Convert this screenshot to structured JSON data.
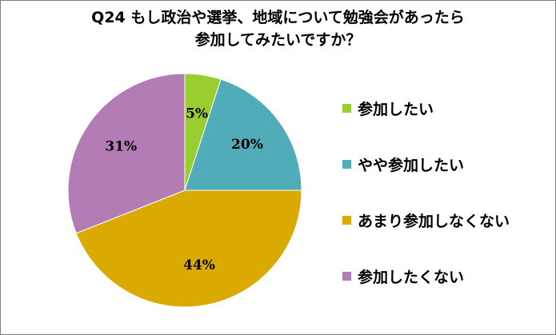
{
  "chart_data": {
    "type": "pie",
    "title_lines": [
      "Q24 もし政治や選挙、地域について勉強会があったら",
      "参加してみたいですか？"
    ],
    "categories": [
      "参加したい",
      "やや参加したい",
      "あまり参加しなくない",
      "参加したくない"
    ],
    "values": [
      5,
      20,
      44,
      31
    ],
    "data_labels": [
      "5%",
      "20%",
      "44%",
      "31%"
    ],
    "colors": [
      "#9ACD32",
      "#4FACB8",
      "#DAAA00",
      "#B47CB4"
    ],
    "legend_position": "right"
  }
}
